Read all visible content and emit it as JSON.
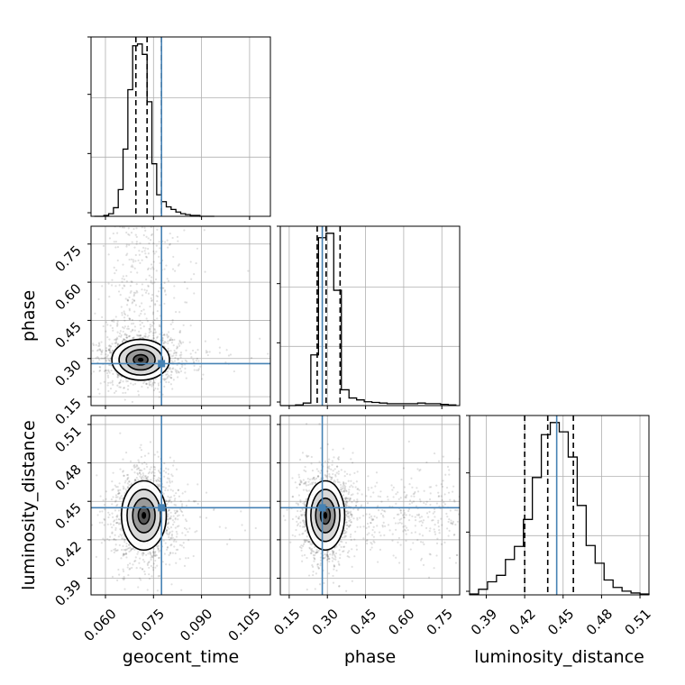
{
  "chart_data": {
    "type": "scatter",
    "title": "",
    "parameters": [
      {
        "name": "geocent_time",
        "range": [
          0.0555,
          0.1115
        ],
        "ticks": [
          0.06,
          0.075,
          0.09,
          0.105
        ],
        "tick_labels": [
          "0.060",
          "0.075",
          "0.090",
          "0.105"
        ]
      },
      {
        "name": "phase",
        "range": [
          0.115,
          0.82
        ],
        "ticks": [
          0.15,
          0.3,
          0.45,
          0.6,
          0.75
        ],
        "tick_labels": [
          "0.15",
          "0.30",
          "0.45",
          "0.60",
          "0.75"
        ]
      },
      {
        "name": "luminosity_distance",
        "range": [
          0.377,
          0.517
        ],
        "ticks": [
          0.39,
          0.42,
          0.45,
          0.48,
          0.51
        ],
        "tick_labels": [
          "0.39",
          "0.42",
          "0.45",
          "0.48",
          "0.51"
        ]
      }
    ],
    "truths": [
      0.0775,
      0.28,
      0.445
    ],
    "truth_color": "#4682b4",
    "grid": true,
    "histograms": [
      {
        "parameter": "geocent_time",
        "bin_edges": [
          0.0565,
          0.058,
          0.0595,
          0.061,
          0.0625,
          0.064,
          0.0655,
          0.067,
          0.0685,
          0.07,
          0.0715,
          0.073,
          0.0745,
          0.076,
          0.0775,
          0.079,
          0.0805,
          0.082,
          0.0835,
          0.085,
          0.0865,
          0.088,
          0.0895,
          0.091,
          0.0925,
          0.094
        ],
        "counts": [
          0,
          0,
          1,
          3,
          10,
          31,
          78,
          147,
          198,
          200,
          188,
          133,
          61,
          25,
          17,
          11,
          8,
          5,
          3,
          2,
          1,
          1,
          0,
          0,
          0
        ],
        "quantiles": [
          0.0695,
          0.073,
          0.0775
        ]
      },
      {
        "parameter": "phase",
        "bin_edges": [
          0.115,
          0.145,
          0.175,
          0.205,
          0.235,
          0.265,
          0.295,
          0.325,
          0.355,
          0.385,
          0.415,
          0.445,
          0.475,
          0.505,
          0.535,
          0.565,
          0.595,
          0.625,
          0.655,
          0.685,
          0.715,
          0.745,
          0.775,
          0.805
        ],
        "counts": [
          0,
          0,
          1,
          4,
          80,
          265,
          272,
          182,
          25,
          12,
          9,
          6,
          5,
          4,
          3,
          3,
          3,
          3,
          4,
          3,
          3,
          2,
          1
        ],
        "quantiles": [
          0.26,
          0.295,
          0.35
        ]
      },
      {
        "parameter": "luminosity_distance",
        "bin_edges": [
          0.377,
          0.384,
          0.391,
          0.398,
          0.405,
          0.412,
          0.419,
          0.426,
          0.433,
          0.44,
          0.447,
          0.454,
          0.461,
          0.468,
          0.475,
          0.482,
          0.489,
          0.496,
          0.503,
          0.51,
          0.517
        ],
        "counts": [
          1,
          6,
          14,
          21,
          38,
          52,
          81,
          126,
          172,
          185,
          175,
          148,
          96,
          53,
          34,
          16,
          8,
          4,
          2,
          1
        ],
        "quantiles": [
          0.42,
          0.438,
          0.458
        ]
      }
    ],
    "contours_2d": [
      {
        "x_param": "geocent_time",
        "y_param": "phase",
        "center": [
          0.071,
          0.295
        ],
        "spread": [
          0.0045,
          0.04
        ],
        "rotation_deg": 0,
        "levels_sigma": [
          0.5,
          1.0,
          1.5,
          2.0
        ]
      },
      {
        "x_param": "geocent_time",
        "y_param": "luminosity_distance",
        "center": [
          0.072,
          0.439
        ],
        "spread": [
          0.0035,
          0.0135
        ],
        "rotation_deg": 0,
        "levels_sigma": [
          0.5,
          1.0,
          1.5,
          2.0
        ]
      },
      {
        "x_param": "phase",
        "y_param": "luminosity_distance",
        "center": [
          0.292,
          0.439
        ],
        "spread": [
          0.038,
          0.0135
        ],
        "rotation_deg": 0,
        "levels_sigma": [
          0.5,
          1.0,
          1.5,
          2.0
        ]
      }
    ]
  }
}
